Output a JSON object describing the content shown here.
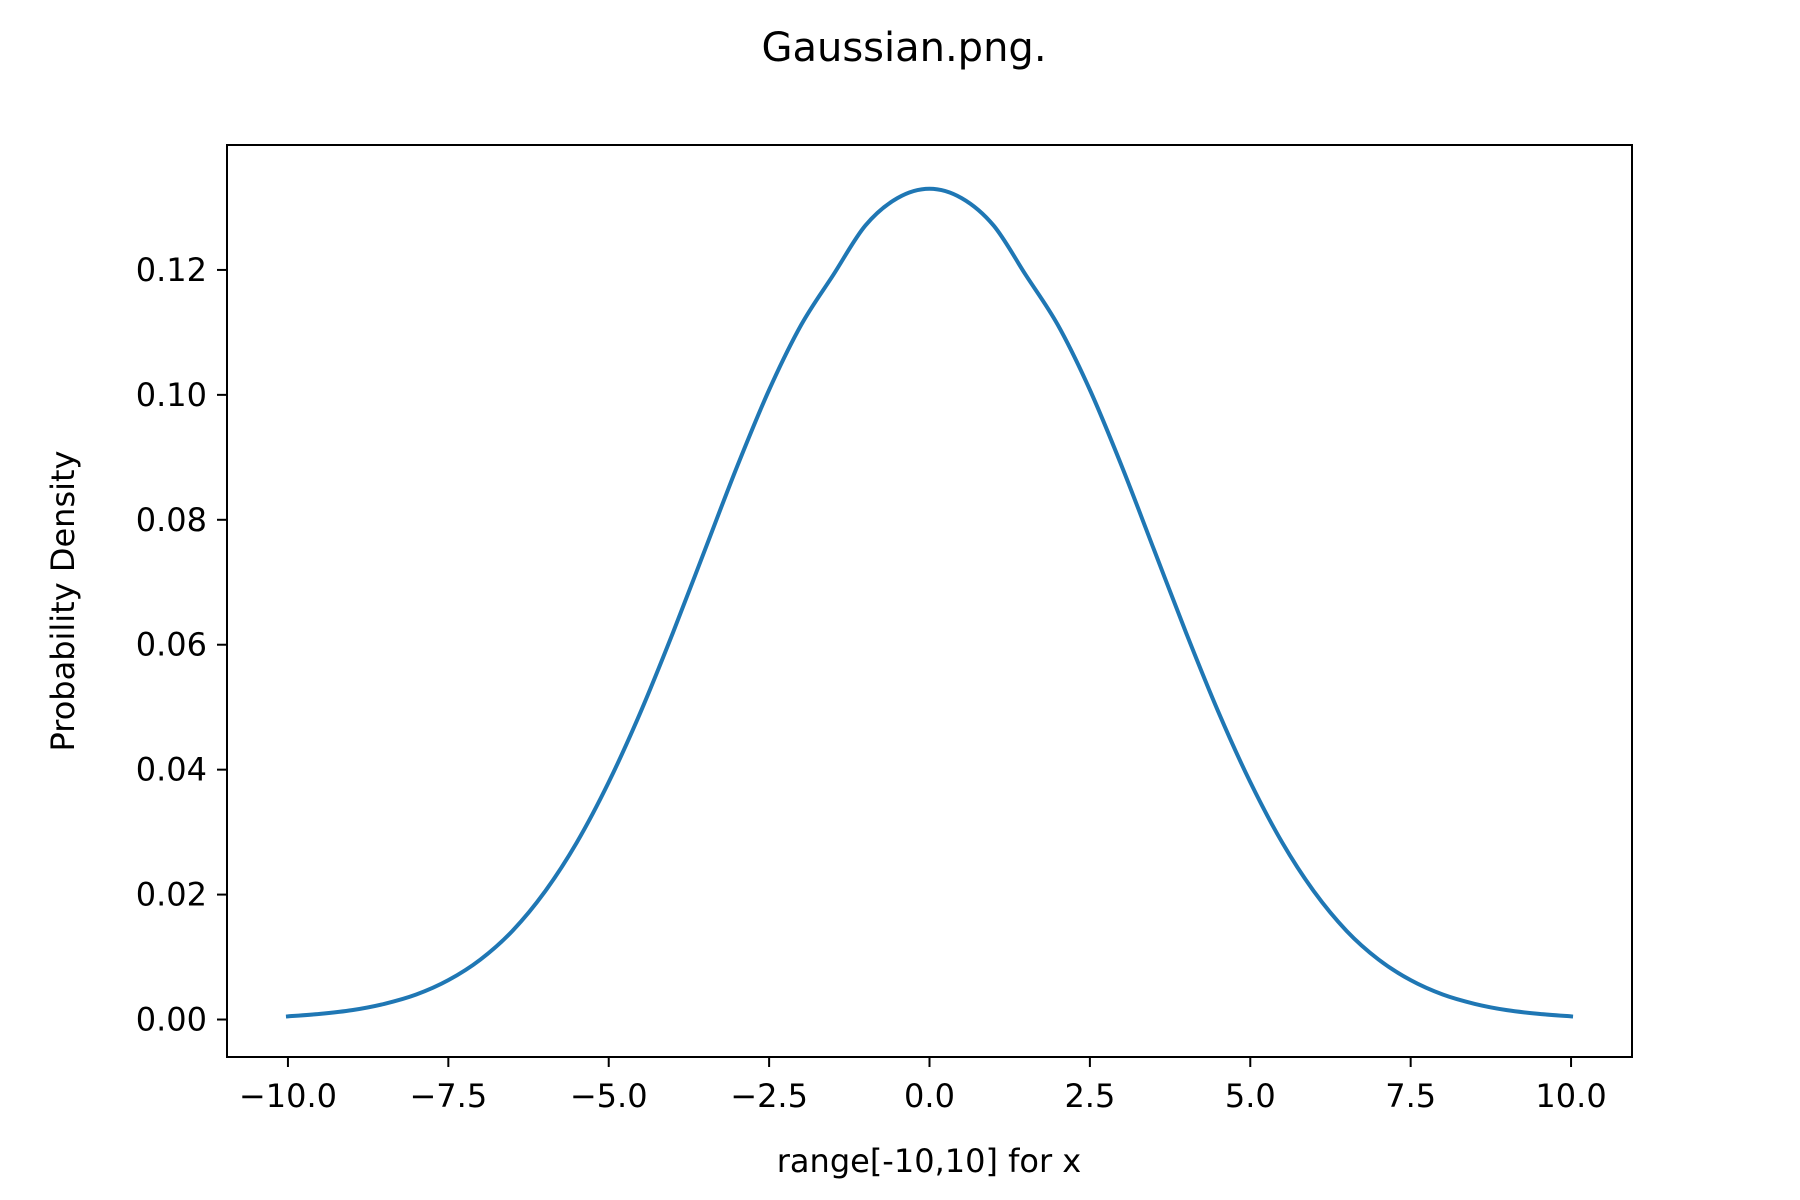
{
  "chart_data": {
    "type": "line",
    "title": "Gaussian.png.",
    "xlabel": "range[-10,10] for x",
    "ylabel": "Probability Density",
    "xlim": [
      -10.95,
      10.95
    ],
    "ylim": [
      -0.006,
      0.14
    ],
    "xticks": [
      -10.0,
      -7.5,
      -5.0,
      -2.5,
      0.0,
      2.5,
      5.0,
      7.5,
      10.0
    ],
    "xtick_labels": [
      "−10.0",
      "−7.5",
      "−5.0",
      "−2.5",
      "0.0",
      "2.5",
      "5.0",
      "7.5",
      "10.0"
    ],
    "yticks": [
      0.0,
      0.02,
      0.04,
      0.06,
      0.08,
      0.1,
      0.12
    ],
    "ytick_labels": [
      "0.00",
      "0.02",
      "0.04",
      "0.06",
      "0.08",
      "0.10",
      "0.12"
    ],
    "grid": false,
    "series": [
      {
        "color": "#1f77b4",
        "x": [
          -10,
          -9.5,
          -9,
          -8.5,
          -8,
          -7.5,
          -7,
          -6.5,
          -6,
          -5.5,
          -5,
          -4.5,
          -4,
          -3.5,
          -3,
          -2.5,
          -2,
          -1.5,
          -1,
          -0.5,
          0,
          0.5,
          1,
          1.5,
          2,
          2.5,
          3,
          3.5,
          4,
          4.5,
          5,
          5.5,
          6,
          6.5,
          7,
          7.5,
          8,
          8.5,
          9,
          9.5,
          10
        ],
        "y": [
          0.0005,
          0.0009,
          0.0015,
          0.0025,
          0.004,
          0.0063,
          0.0096,
          0.0142,
          0.0204,
          0.0283,
          0.038,
          0.0493,
          0.0619,
          0.0752,
          0.0885,
          0.1008,
          0.1112,
          0.1192,
          0.1271,
          0.1315,
          0.133,
          0.1315,
          0.1271,
          0.1192,
          0.1112,
          0.1008,
          0.0885,
          0.0752,
          0.0619,
          0.0493,
          0.038,
          0.0283,
          0.0204,
          0.0142,
          0.0096,
          0.0063,
          0.004,
          0.0025,
          0.0015,
          0.0009,
          0.0005
        ]
      }
    ]
  }
}
